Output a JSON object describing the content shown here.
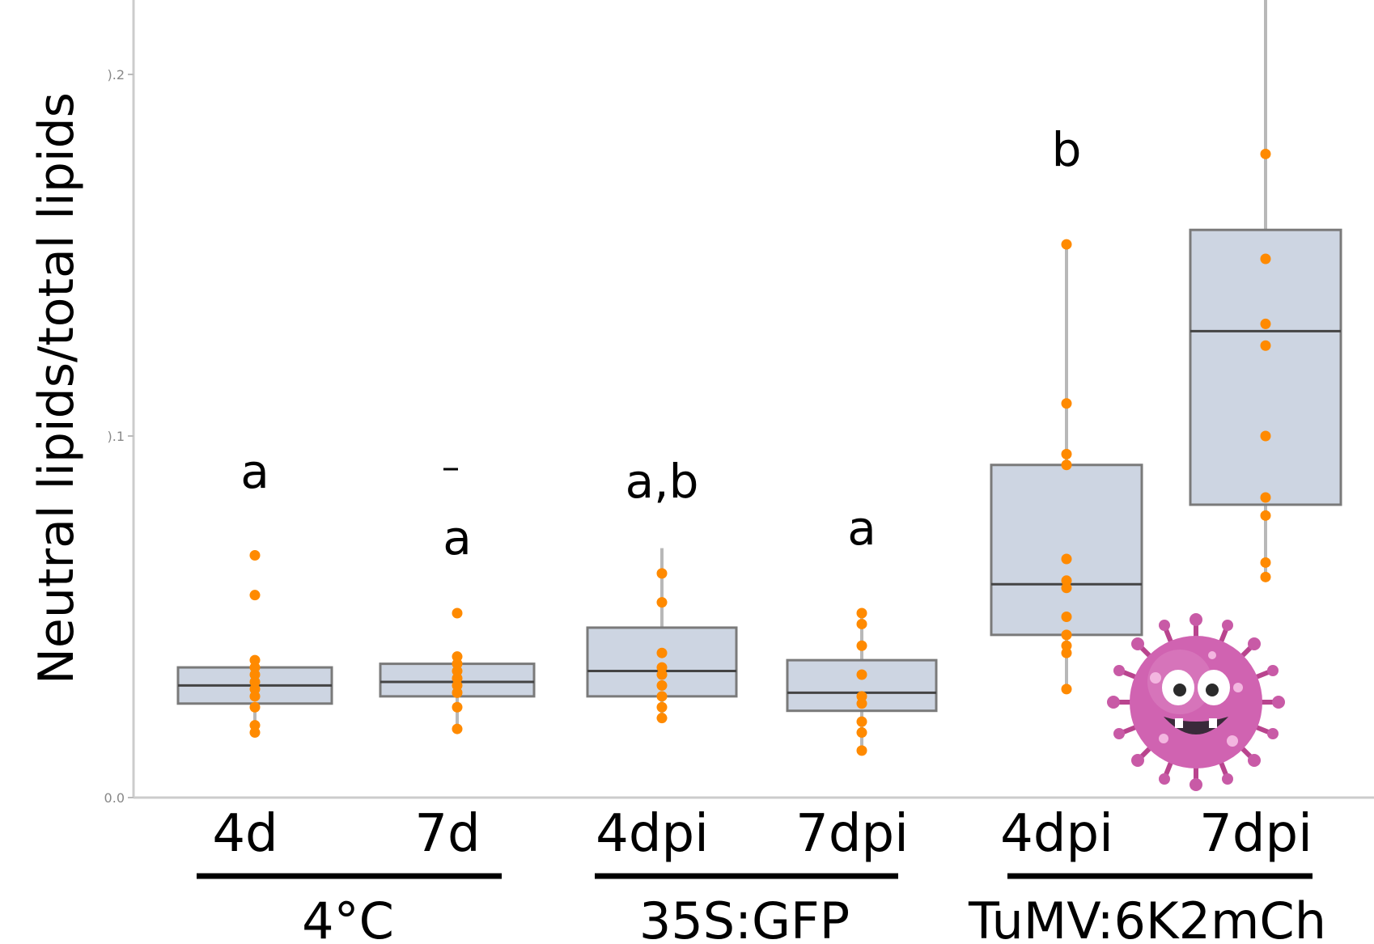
{
  "chart_data": {
    "type": "box",
    "ylabel": "Neutral lipids/total lipids",
    "ylim": [
      0,
      0.22
    ],
    "yticks": [
      {
        "value": 0.0,
        "label": "0.0"
      },
      {
        "value": 0.1,
        "label": ").1"
      },
      {
        "value": 0.2,
        "label": ").2"
      }
    ],
    "groups": [
      {
        "name": "4°C",
        "categories": [
          "4d",
          "7d"
        ]
      },
      {
        "name": "35S:GFP",
        "categories": [
          "4dpi",
          "7dpi"
        ]
      },
      {
        "name": "TuMV:6K2mCh",
        "categories": [
          "4dpi",
          "7dpi"
        ]
      }
    ],
    "boxes": [
      {
        "label": "4d",
        "group": "4°C",
        "q1": 0.026,
        "median": 0.031,
        "q3": 0.036,
        "whisker_low": 0.018,
        "whisker_high": 0.039,
        "significance": "a",
        "points": [
          0.067,
          0.056,
          0.038,
          0.036,
          0.034,
          0.032,
          0.03,
          0.028,
          0.025,
          0.02,
          0.018
        ]
      },
      {
        "label": "7d",
        "group": "4°C",
        "q1": 0.028,
        "median": 0.032,
        "q3": 0.037,
        "whisker_low": 0.019,
        "whisker_high": 0.04,
        "significance": "a",
        "points": [
          0.051,
          0.039,
          0.037,
          0.035,
          0.033,
          0.031,
          0.029,
          0.025,
          0.019
        ]
      },
      {
        "label": "4dpi",
        "group": "35S:GFP",
        "q1": 0.028,
        "median": 0.035,
        "q3": 0.047,
        "whisker_low": 0.021,
        "whisker_high": 0.069,
        "significance": "a,b",
        "points": [
          0.062,
          0.054,
          0.04,
          0.036,
          0.034,
          0.031,
          0.028,
          0.025,
          0.022
        ]
      },
      {
        "label": "7dpi",
        "group": "35S:GFP",
        "q1": 0.024,
        "median": 0.029,
        "q3": 0.038,
        "whisker_low": 0.013,
        "whisker_high": 0.052,
        "significance": "a",
        "points": [
          0.051,
          0.048,
          0.042,
          0.034,
          0.028,
          0.026,
          0.021,
          0.018,
          0.013
        ]
      },
      {
        "label": "4dpi",
        "group": "TuMV:6K2mCh",
        "q1": 0.045,
        "median": 0.059,
        "q3": 0.092,
        "whisker_low": 0.03,
        "whisker_high": 0.153,
        "significance": "b",
        "points": [
          0.153,
          0.109,
          0.095,
          0.092,
          0.066,
          0.06,
          0.058,
          0.05,
          0.045,
          0.042,
          0.04,
          0.03
        ]
      },
      {
        "label": "7dpi",
        "group": "TuMV:6K2mCh",
        "q1": 0.081,
        "median": 0.129,
        "q3": 0.157,
        "whisker_low": 0.061,
        "whisker_high": 0.225,
        "significance": "",
        "points": [
          0.225,
          0.178,
          0.149,
          0.131,
          0.125,
          0.1,
          0.083,
          0.078,
          0.065,
          0.061
        ]
      }
    ],
    "colors": {
      "box_fill": "#cdd5e2",
      "box_edge": "#7a7a7a",
      "median": "#444444",
      "whisker": "#b8b8b8",
      "points": "#ff8a00",
      "axis": "#cccccc"
    }
  },
  "decoration": {
    "icon": "virus-cartoon-icon"
  }
}
